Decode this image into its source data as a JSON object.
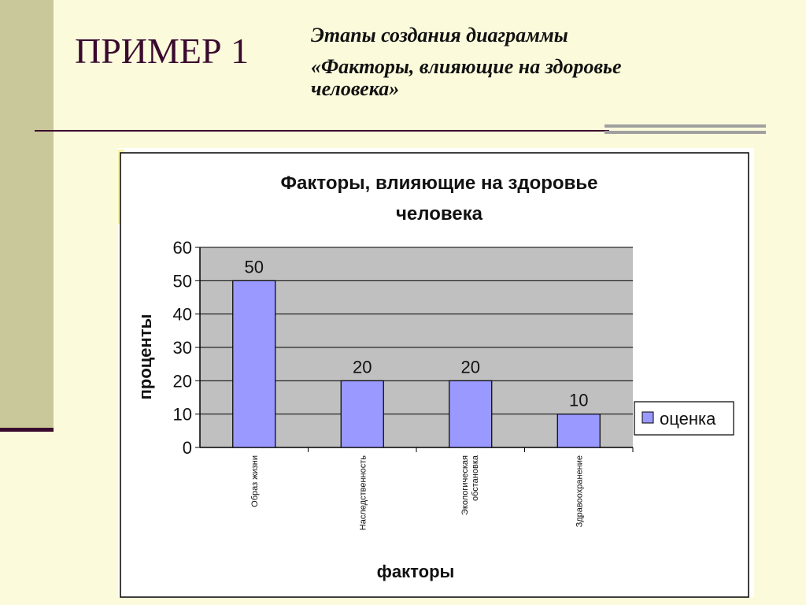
{
  "slide": {
    "title": "ПРИМЕР 1",
    "subtitle_line1": "Этапы создания диаграммы",
    "subtitle_line2": "«Факторы, влияющие на здоровье",
    "subtitle_line3": "человека»"
  },
  "chart_data": {
    "type": "bar",
    "title_line1": "Факторы, влияющие на здоровье",
    "title_line2": "человека",
    "categories": [
      "Образ жизни",
      "Наследственность",
      "Экологическая обстановка",
      "Здравоохранение"
    ],
    "category_lines": [
      [
        "Образ жизни"
      ],
      [
        "Наследственность"
      ],
      [
        "Экологическая",
        "обстановка"
      ],
      [
        "Здравоохранение"
      ]
    ],
    "series": [
      {
        "name": "оценка",
        "values": [
          50,
          20,
          20,
          10
        ]
      }
    ],
    "xlabel": "факторы",
    "ylabel": "проценты",
    "ylim": [
      0,
      60
    ],
    "yticks": [
      0,
      10,
      20,
      30,
      40,
      50,
      60
    ],
    "data_labels": [
      "50",
      "20",
      "20",
      "10"
    ],
    "grid": true,
    "legend_position": "right",
    "colors": {
      "bar": "#9999ff",
      "plot_area": "#c0c0c0",
      "border": "#000000"
    }
  }
}
